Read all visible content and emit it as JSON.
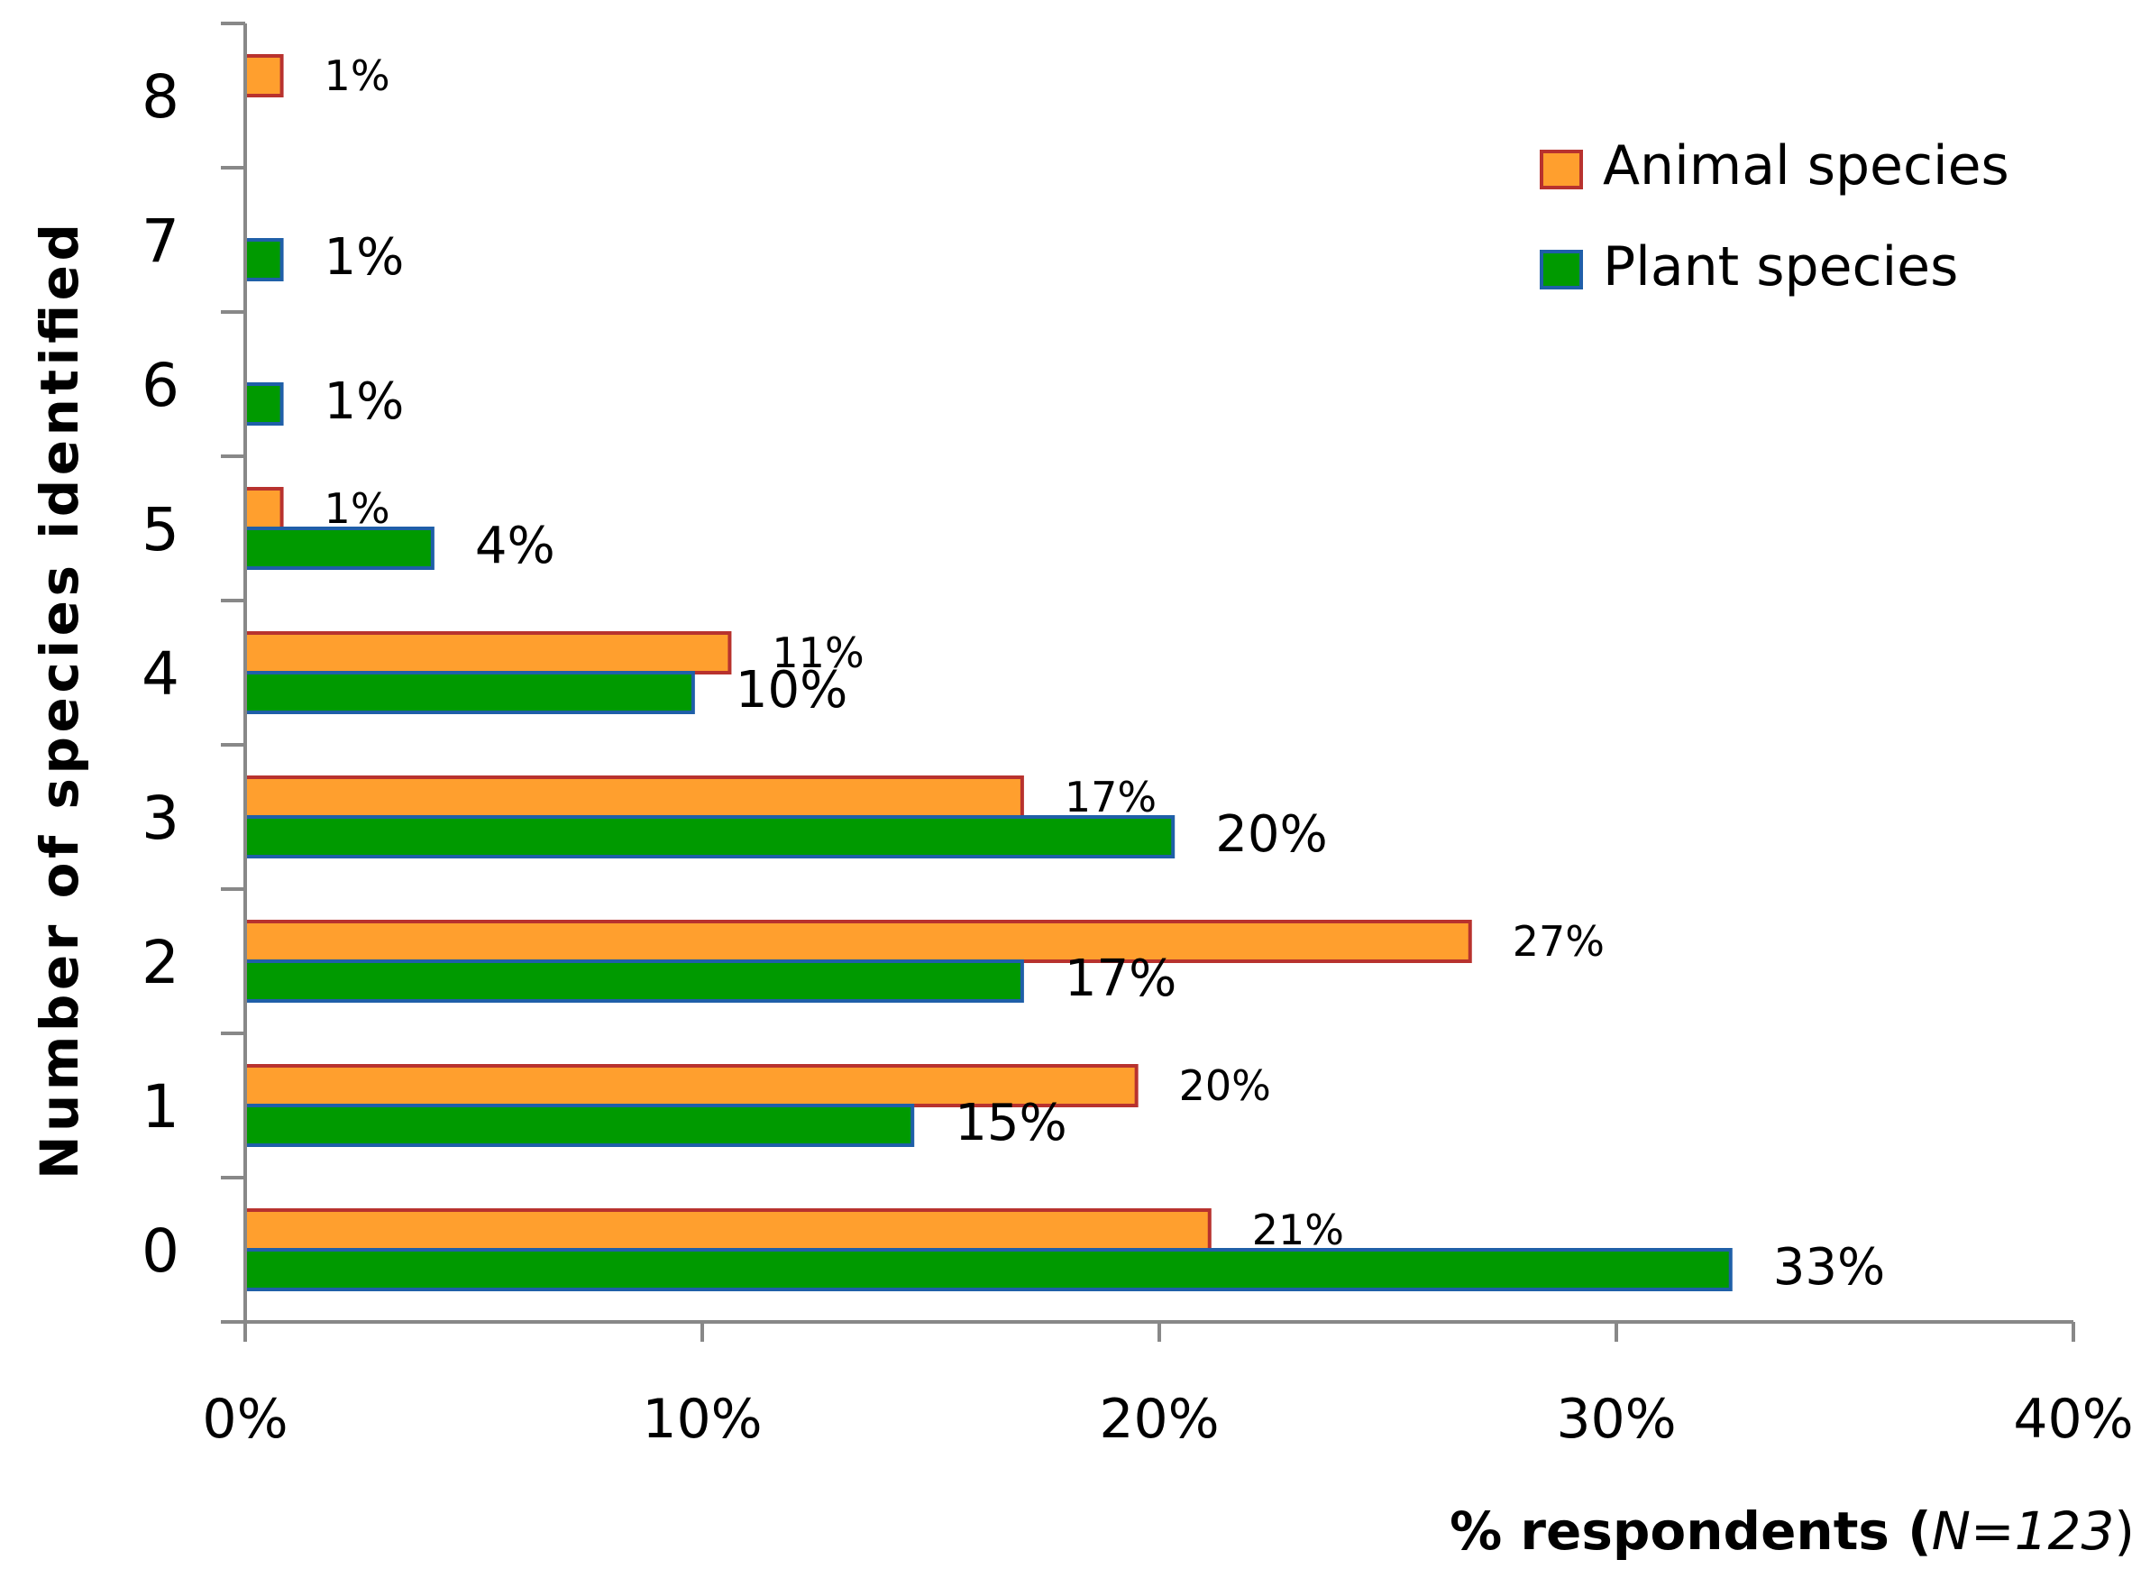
{
  "chart_data": {
    "type": "bar",
    "orientation": "horizontal",
    "categories": [
      "0",
      "1",
      "2",
      "3",
      "4",
      "5",
      "6",
      "7",
      "8"
    ],
    "series": [
      {
        "name": "Animal species",
        "color": "#ff9f2e",
        "border_color": "#b8322e",
        "values": [
          21.1,
          19.5,
          26.8,
          17.0,
          10.6,
          0.8,
          null,
          null,
          0.8
        ],
        "labels": [
          "21%",
          "20%",
          "27%",
          "17%",
          "11%",
          "1%",
          null,
          null,
          "1%"
        ]
      },
      {
        "name": "Plant species",
        "color": "#009a00",
        "border_color": "#1f5fa8",
        "values": [
          32.5,
          14.6,
          17.0,
          20.3,
          9.8,
          4.1,
          0.8,
          0.8,
          null
        ],
        "labels": [
          "33%",
          "15%",
          "17%",
          "20%",
          "10%",
          "4%",
          "1%",
          "1%",
          null
        ]
      }
    ],
    "x_ticks": [
      "0%",
      "10%",
      "20%",
      "30%",
      "40%"
    ],
    "xlim": [
      0,
      40
    ],
    "xlabel": {
      "main": "% respondents (",
      "italic": "N=123",
      "end": ")"
    },
    "ylabel": "Number of species identified",
    "legend_position": "top-right",
    "grid": false
  }
}
